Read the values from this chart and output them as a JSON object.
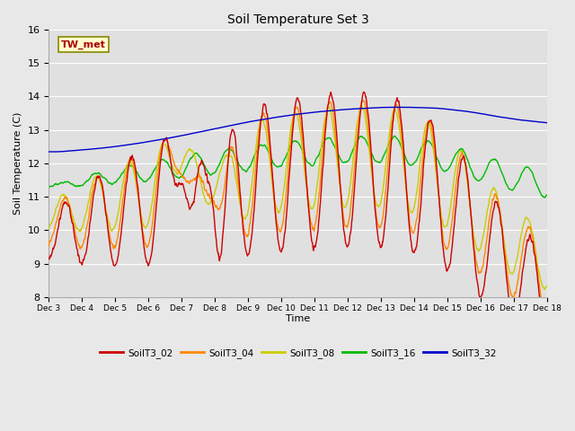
{
  "title": "Soil Temperature Set 3",
  "xlabel": "Time",
  "ylabel": "Soil Temperature (C)",
  "ylim": [
    8.0,
    16.0
  ],
  "yticks": [
    8.0,
    9.0,
    10.0,
    11.0,
    12.0,
    13.0,
    14.0,
    15.0,
    16.0
  ],
  "series_colors": {
    "SoilT3_02": "#cc0000",
    "SoilT3_04": "#ff8800",
    "SoilT3_08": "#cccc00",
    "SoilT3_16": "#00bb00",
    "SoilT3_32": "#0000cc"
  },
  "annotation_text": "TW_met",
  "annotation_box_facecolor": "#ffffcc",
  "annotation_text_color": "#aa0000",
  "annotation_edge_color": "#888800",
  "x_tick_labels": [
    "Dec 3",
    "Dec 4",
    "Dec 5",
    "Dec 6",
    "Dec 7",
    "Dec 8",
    "Dec 9",
    "Dec 10",
    "Dec 11",
    "Dec 12",
    "Dec 13",
    "Dec 14",
    "Dec 15",
    "Dec 16",
    "Dec 17",
    "Dec 18"
  ],
  "line_width": 1.0,
  "fig_bg": "#e8e8e8",
  "ax_bg": "#e0e0e0"
}
